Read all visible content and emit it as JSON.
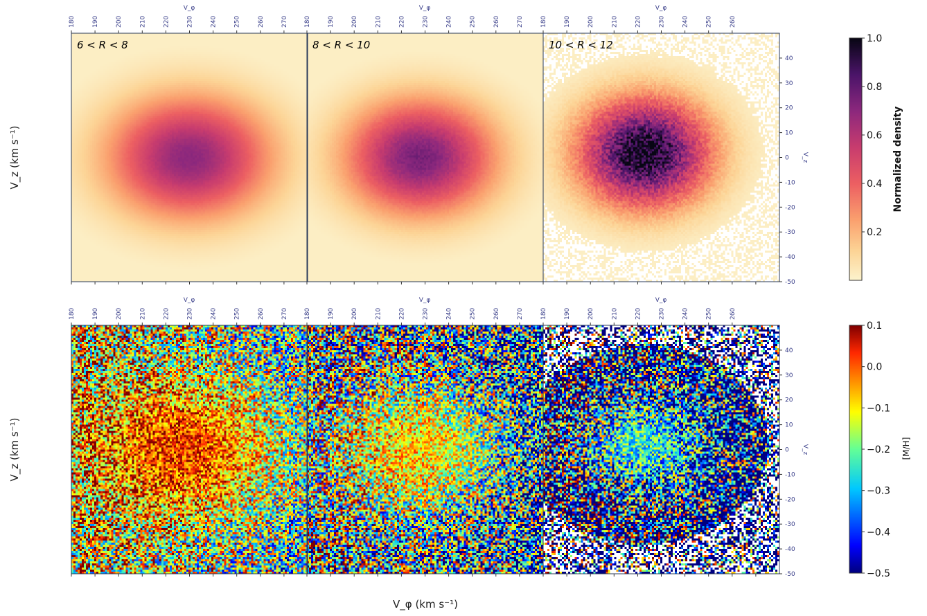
{
  "chart_data": {
    "type": "heatmap",
    "xlabel": "V_φ (km s⁻¹)",
    "ylabel": "V_z (km s⁻¹)",
    "top_axis_label": "V_φ",
    "right_axis_label": "V_z",
    "x_ticks": [
      180,
      190,
      200,
      210,
      220,
      230,
      240,
      250,
      260,
      270
    ],
    "y_ticks": [
      40,
      30,
      20,
      10,
      0,
      -10,
      -20,
      -30,
      -40,
      -50
    ],
    "xlim": [
      180,
      280
    ],
    "ylim": [
      -50,
      50
    ],
    "panels": [
      {
        "title": "6 < R < 8",
        "peak_vphi": 230,
        "peak_vz": 0,
        "peak_density": 0.7,
        "mean_mh": 0.02
      },
      {
        "title": "8 < R < 10",
        "peak_vphi": 228,
        "peak_vz": 0,
        "peak_density": 0.75,
        "mean_mh": -0.08
      },
      {
        "title": "10 < R < 12",
        "peak_vphi": 223,
        "peak_vz": 2,
        "peak_density": 1.0,
        "mean_mh": -0.24
      }
    ],
    "rows": [
      {
        "quantity": "Normalized density",
        "colormap": "magma_r",
        "colorbar_range": [
          0,
          1.0
        ],
        "colorbar_ticks": [
          "1.0",
          "0.8",
          "0.6",
          "0.4",
          "0.2"
        ]
      },
      {
        "quantity": "[M/H]",
        "colormap": "jet",
        "colorbar_range": [
          -0.5,
          0.1
        ],
        "colorbar_ticks": [
          "0.1",
          "0.0",
          "−0.1",
          "−0.2",
          "−0.3",
          "−0.4",
          "−0.5"
        ]
      }
    ]
  }
}
